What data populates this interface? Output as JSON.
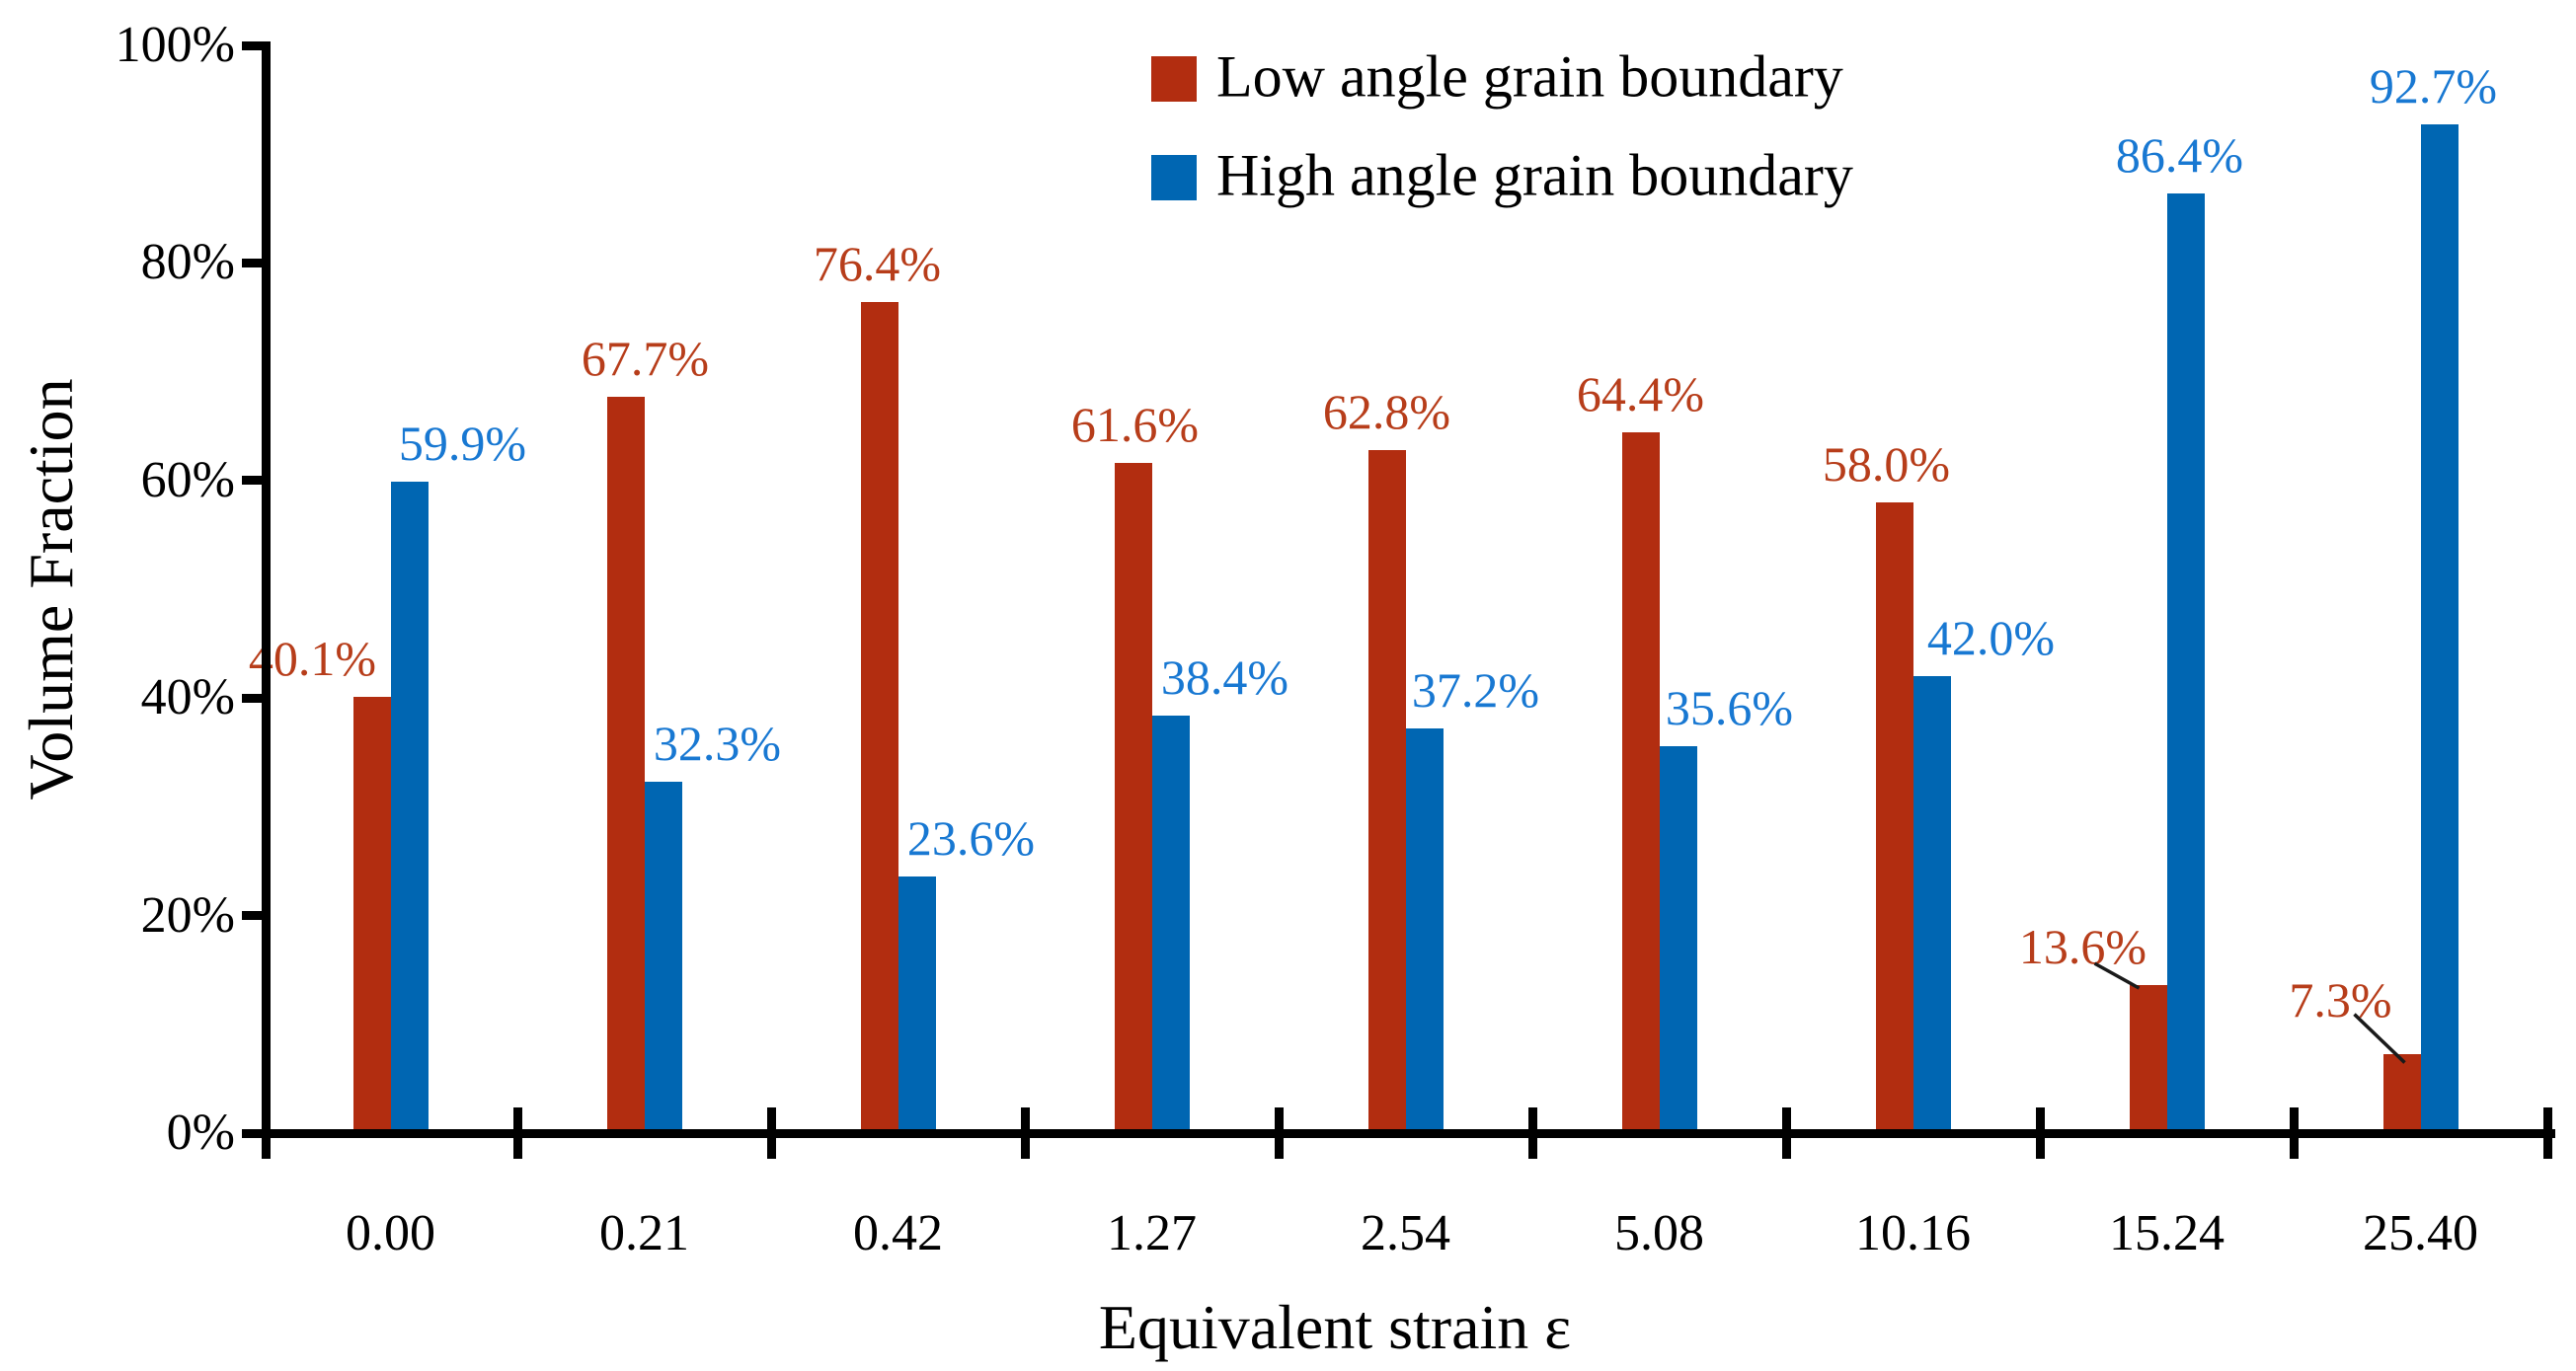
{
  "chart_data": {
    "type": "bar",
    "title": "",
    "xlabel": "Equivalent strain ε",
    "ylabel": "Volume Fraction",
    "categories": [
      "0.00",
      "0.21",
      "0.42",
      "1.27",
      "2.54",
      "5.08",
      "10.16",
      "15.24",
      "25.40"
    ],
    "series": [
      {
        "name": "Low angle grain boundary",
        "color": "#b22d10",
        "label_color": "#b73d1a",
        "values": [
          40.1,
          67.7,
          76.4,
          61.6,
          62.8,
          64.4,
          58.0,
          13.6,
          7.3
        ],
        "value_labels": [
          "40.1%",
          "67.7%",
          "76.4%",
          "61.6%",
          "62.8%",
          "64.4%",
          "58.0%",
          "13.6%",
          "7.3%"
        ]
      },
      {
        "name": "High angle grain boundary",
        "color": "#0066b2",
        "label_color": "#1878d2",
        "values": [
          59.9,
          32.3,
          23.6,
          38.4,
          37.2,
          35.6,
          42.0,
          86.4,
          92.7
        ],
        "value_labels": [
          "59.9%",
          "32.3%",
          "23.6%",
          "38.4%",
          "37.2%",
          "35.6%",
          "42.0%",
          "86.4%",
          "92.7%"
        ]
      }
    ],
    "y_ticks": [
      "0%",
      "20%",
      "40%",
      "60%",
      "80%",
      "100%"
    ],
    "ylim": [
      0,
      100
    ],
    "grid": false,
    "legend_position": "top-center",
    "annotations": [
      {
        "target": "15.24 low angle bar",
        "text": "13.6%",
        "leader_line": true
      },
      {
        "target": "25.40 low angle bar",
        "text": "7.3%",
        "leader_line": true
      }
    ],
    "axis_color": "#000000"
  }
}
